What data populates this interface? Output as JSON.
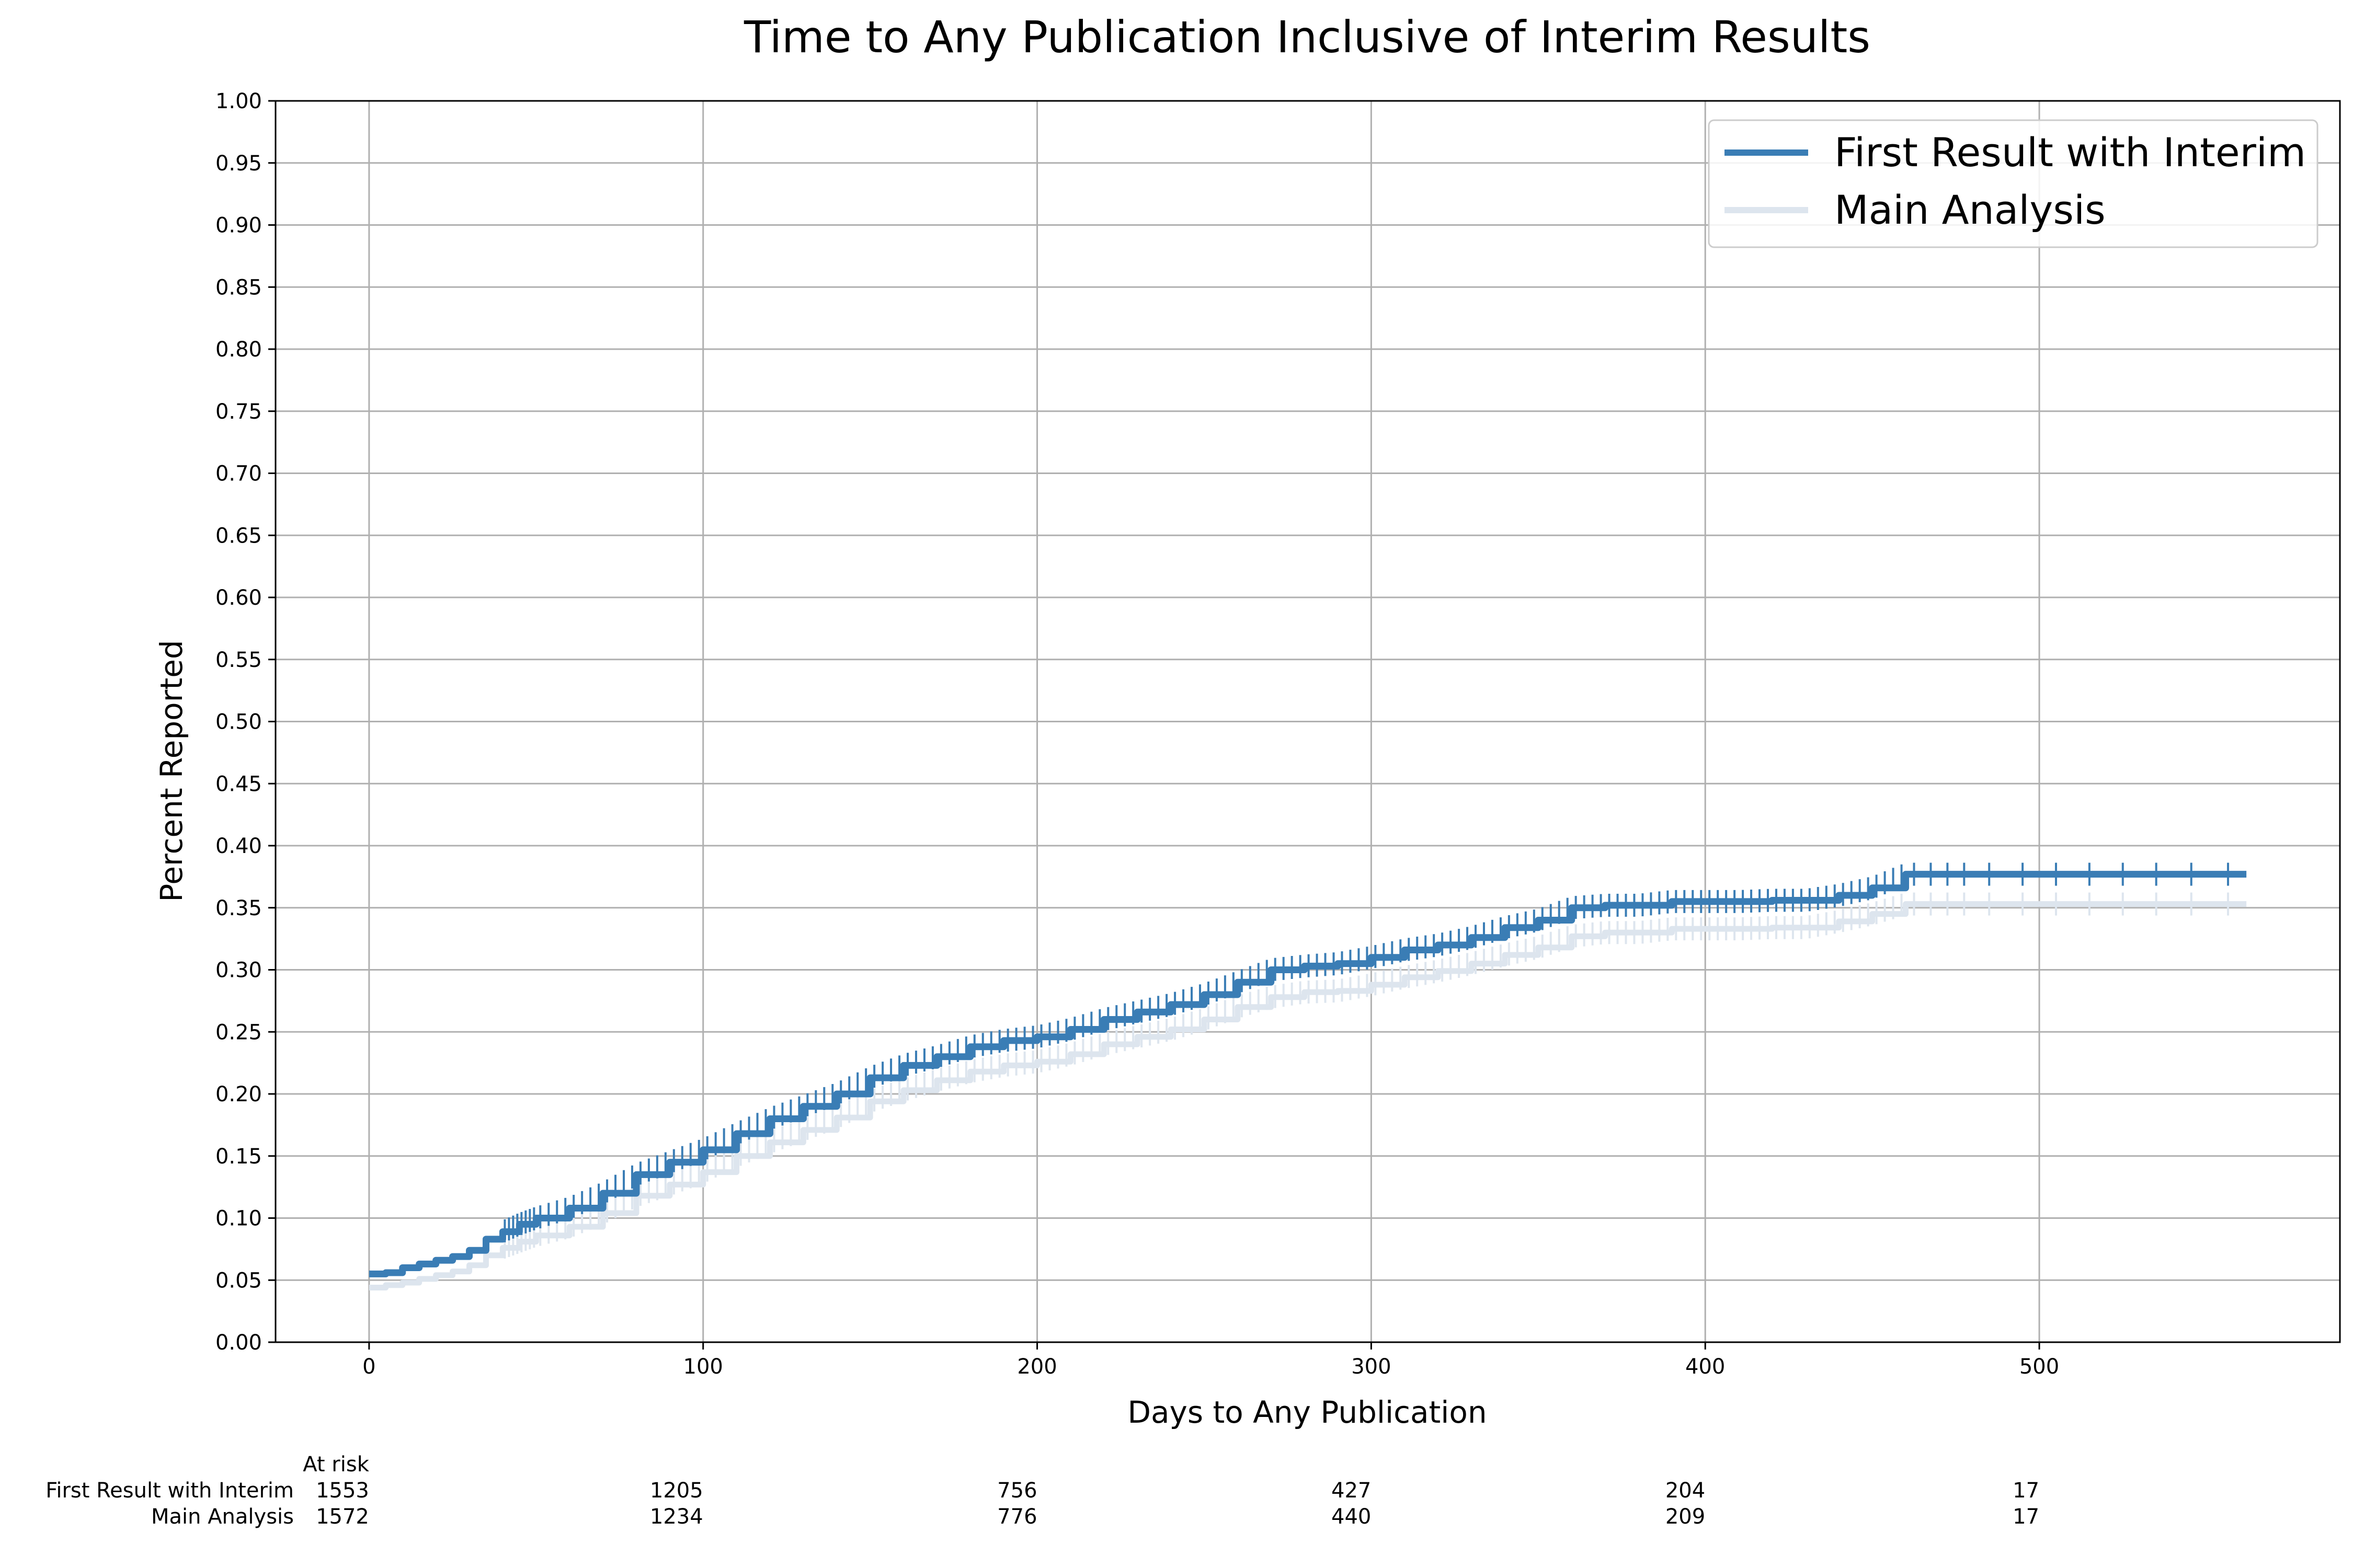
{
  "chart_data": {
    "type": "line",
    "title": "Time to Any Publication Inclusive of Interim Results",
    "xlabel": "Days to Any Publication",
    "ylabel": "Percent Reported",
    "xlim": [
      -28,
      590
    ],
    "ylim": [
      0,
      1
    ],
    "x_ticks": [
      0,
      100,
      200,
      300,
      400,
      500
    ],
    "y_ticks": [
      "0.00",
      "0.05",
      "0.10",
      "0.15",
      "0.20",
      "0.25",
      "0.30",
      "0.35",
      "0.40",
      "0.45",
      "0.50",
      "0.55",
      "0.60",
      "0.65",
      "0.70",
      "0.75",
      "0.80",
      "0.85",
      "0.90",
      "0.95",
      "1.00"
    ],
    "grid": true,
    "legend_position": "top-right",
    "series": [
      {
        "name": "First Result with Interim",
        "color": "#3a7db5",
        "x": [
          0,
          5,
          10,
          15,
          20,
          25,
          30,
          35,
          40,
          45,
          50,
          60,
          70,
          80,
          90,
          100,
          110,
          120,
          130,
          140,
          150,
          160,
          170,
          180,
          190,
          200,
          210,
          220,
          230,
          240,
          250,
          260,
          270,
          280,
          290,
          300,
          310,
          320,
          330,
          340,
          350,
          360,
          370,
          380,
          390,
          400,
          410,
          420,
          430,
          440,
          450,
          460,
          470,
          480,
          500,
          520,
          540,
          562
        ],
        "y": [
          0.055,
          0.056,
          0.06,
          0.063,
          0.066,
          0.069,
          0.074,
          0.083,
          0.089,
          0.095,
          0.1,
          0.108,
          0.12,
          0.135,
          0.145,
          0.155,
          0.168,
          0.18,
          0.19,
          0.2,
          0.213,
          0.223,
          0.23,
          0.238,
          0.243,
          0.246,
          0.252,
          0.26,
          0.266,
          0.272,
          0.28,
          0.29,
          0.3,
          0.303,
          0.305,
          0.31,
          0.316,
          0.32,
          0.326,
          0.334,
          0.34,
          0.35,
          0.352,
          0.352,
          0.355,
          0.355,
          0.355,
          0.356,
          0.356,
          0.36,
          0.366,
          0.377,
          0.377,
          0.377,
          0.377,
          0.377,
          0.377,
          0.377
        ]
      },
      {
        "name": "Main Analysis",
        "color": "#dde5ee",
        "x": [
          0,
          5,
          10,
          15,
          20,
          25,
          30,
          35,
          40,
          45,
          50,
          60,
          70,
          80,
          90,
          100,
          110,
          120,
          130,
          140,
          150,
          160,
          170,
          180,
          190,
          200,
          210,
          220,
          230,
          240,
          250,
          260,
          270,
          280,
          290,
          300,
          310,
          320,
          330,
          340,
          350,
          360,
          370,
          380,
          390,
          400,
          410,
          420,
          430,
          440,
          450,
          460,
          470,
          480,
          500,
          520,
          540,
          562
        ],
        "y": [
          0.044,
          0.046,
          0.048,
          0.051,
          0.054,
          0.057,
          0.062,
          0.07,
          0.076,
          0.081,
          0.086,
          0.093,
          0.104,
          0.118,
          0.127,
          0.137,
          0.15,
          0.161,
          0.171,
          0.181,
          0.194,
          0.203,
          0.211,
          0.218,
          0.223,
          0.226,
          0.232,
          0.24,
          0.246,
          0.252,
          0.26,
          0.27,
          0.278,
          0.282,
          0.283,
          0.288,
          0.294,
          0.299,
          0.305,
          0.312,
          0.318,
          0.327,
          0.33,
          0.33,
          0.333,
          0.333,
          0.333,
          0.334,
          0.334,
          0.339,
          0.345,
          0.353,
          0.353,
          0.353,
          0.353,
          0.353,
          0.353,
          0.353
        ]
      }
    ],
    "at_risk": {
      "header": "At risk",
      "times": [
        0,
        100,
        200,
        300,
        400,
        500
      ],
      "rows": [
        {
          "label": "First Result with Interim",
          "values": [
            "1553",
            "1205",
            "756",
            "427",
            "204",
            "17"
          ]
        },
        {
          "label": "Main Analysis",
          "values": [
            "1572",
            "1234",
            "776",
            "440",
            "209",
            "17"
          ]
        }
      ]
    }
  }
}
